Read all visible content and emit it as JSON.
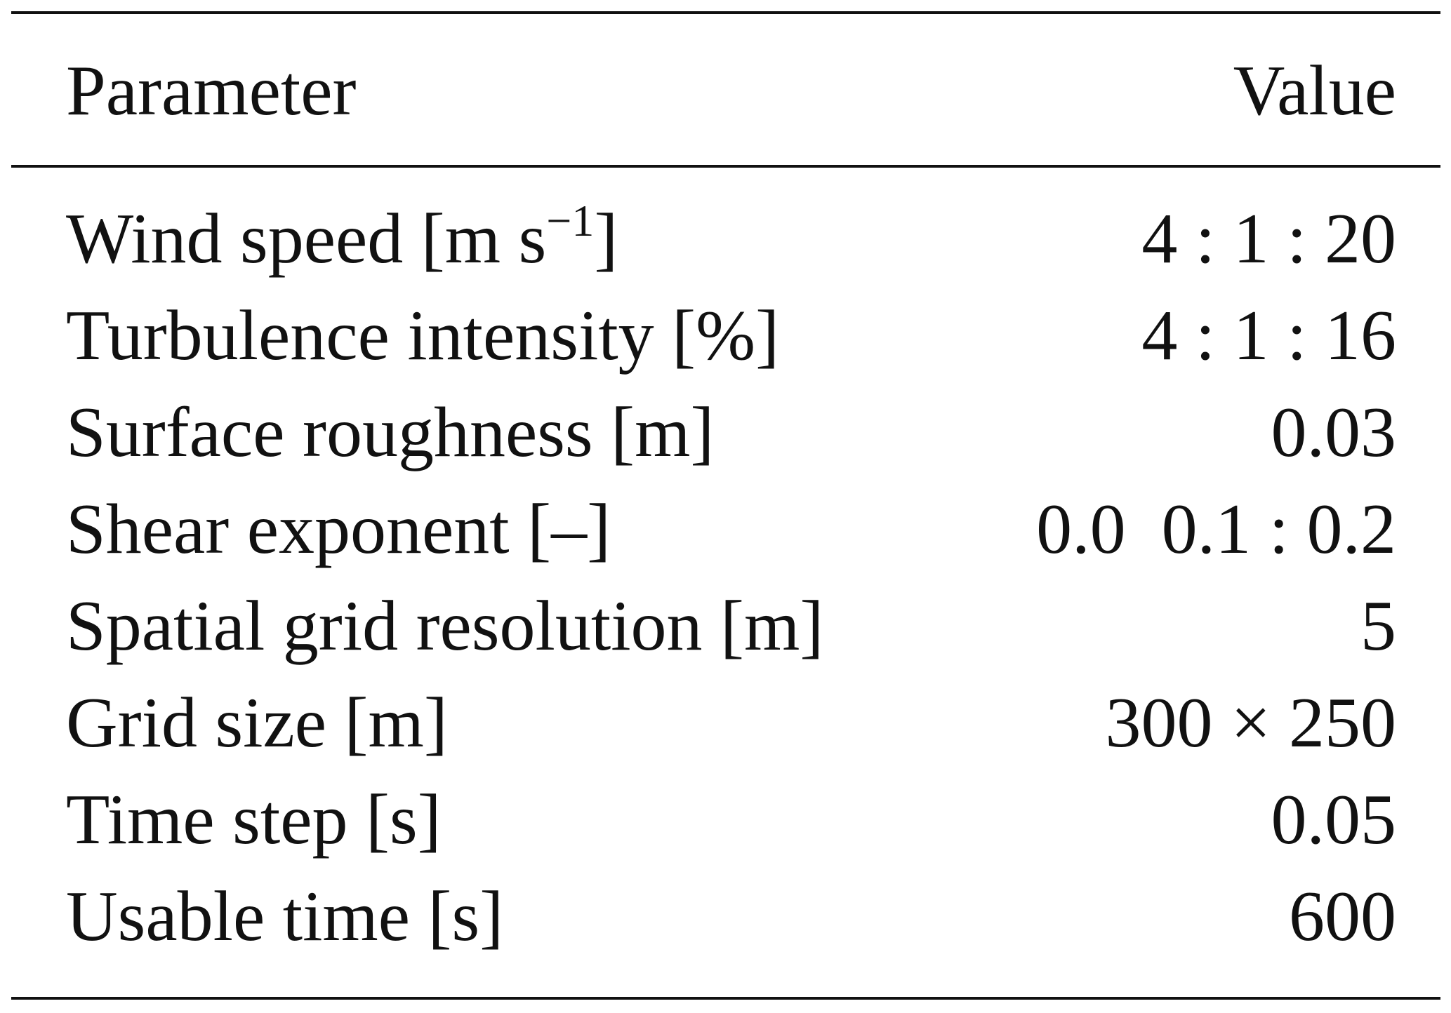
{
  "table": {
    "header": {
      "parameter": "Parameter",
      "value": "Value"
    },
    "rows": [
      {
        "parameter": "Wind speed [m s",
        "parameter_sup": "−1",
        "parameter_suffix": "]",
        "value": "4 : 1 : 20"
      },
      {
        "parameter": "Turbulence intensity [%]",
        "value": "4 : 1 : 16"
      },
      {
        "parameter": "Surface roughness [m]",
        "value": "0.03"
      },
      {
        "parameter": "Shear exponent [–]",
        "value": "0.0  0.1 : 0.2"
      },
      {
        "parameter": "Spatial grid resolution [m]",
        "value": "5"
      },
      {
        "parameter": "Grid size [m]",
        "value": "300 × 250"
      },
      {
        "parameter": "Time step [s]",
        "value": "0.05"
      },
      {
        "parameter": "Usable time [s]",
        "value": "600"
      }
    ]
  }
}
